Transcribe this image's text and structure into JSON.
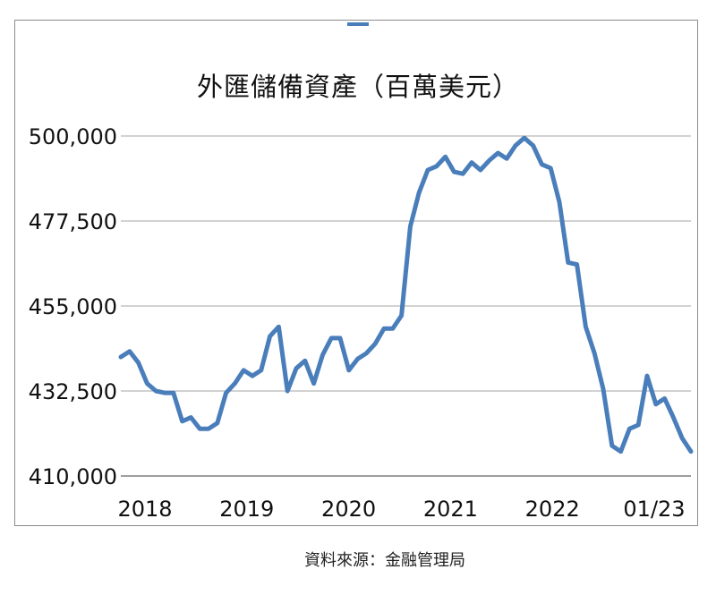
{
  "chart_data": {
    "type": "line",
    "title": "外匯儲備資產（百萬美元）",
    "source": "資料來源：金融管理局",
    "color": "#4a7ebb",
    "xlabel": "",
    "ylabel": "",
    "ylim": [
      410000,
      500000
    ],
    "yticks": [
      410000,
      432500,
      455000,
      477500,
      500000
    ],
    "ytick_labels": [
      "410,000",
      "432,500",
      "455,000",
      "477,500",
      "500,000"
    ],
    "xtick_labels": [
      "2018",
      "2019",
      "2020",
      "2021",
      "2022",
      "01/23"
    ],
    "grid": true,
    "legend": "top-center",
    "series": [
      {
        "values": [
          441500,
          443000,
          440000,
          434500,
          432500,
          432000,
          432000,
          424500,
          425500,
          422500,
          422500,
          424000,
          432000,
          434500,
          438000,
          436500,
          438000,
          447000,
          449500,
          432500,
          438500,
          440500,
          434500,
          442000,
          446500,
          446500,
          438000,
          441000,
          442500,
          445000,
          449000,
          449000,
          452500,
          476000,
          485000,
          491000,
          492000,
          494500,
          490500,
          490000,
          493000,
          491000,
          493500,
          495500,
          494000,
          497500,
          499500,
          497500,
          492500,
          491500,
          482500,
          466500,
          466000,
          449500,
          442500,
          433000,
          418000,
          416500,
          422500,
          423500,
          436500,
          429000,
          430500,
          425500,
          420000,
          416500
        ]
      }
    ]
  }
}
